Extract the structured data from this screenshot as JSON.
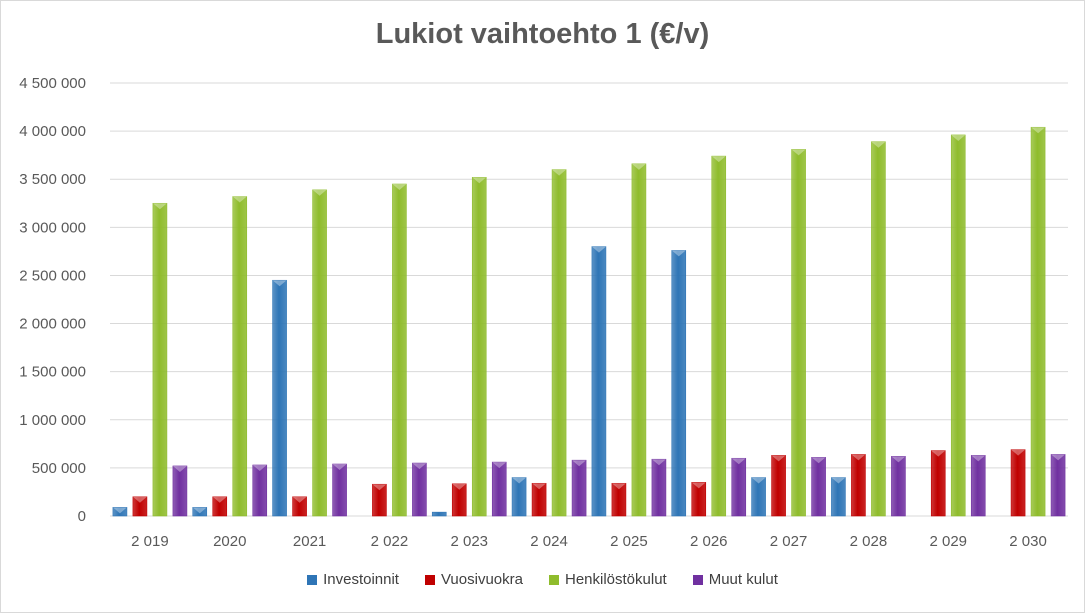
{
  "chart_data": {
    "type": "bar",
    "title": "Lukiot vaihtoehto 1 (€/v)",
    "categories": [
      "2 019",
      "2020",
      "2021",
      "2 022",
      "2 023",
      "2 024",
      "2 025",
      "2 026",
      "2 027",
      "2 028",
      "2 029",
      "2 030"
    ],
    "series": [
      {
        "name": "Investoinnit",
        "color": "#2e75b6",
        "values": [
          90000,
          90000,
          2450000,
          0,
          40000,
          400000,
          2800000,
          2760000,
          400000,
          400000,
          0,
          0
        ]
      },
      {
        "name": "Vuosivuokra",
        "color": "#c00000",
        "values": [
          200000,
          200000,
          200000,
          330000,
          335000,
          340000,
          340000,
          350000,
          630000,
          640000,
          680000,
          690000
        ]
      },
      {
        "name": "Henkilöstökulut",
        "color": "#8fbc2c",
        "values": [
          3250000,
          3320000,
          3390000,
          3450000,
          3520000,
          3600000,
          3660000,
          3740000,
          3810000,
          3890000,
          3960000,
          4040000
        ]
      },
      {
        "name": "Muut kulut",
        "color": "#7030a0",
        "values": [
          520000,
          530000,
          540000,
          550000,
          560000,
          580000,
          590000,
          600000,
          610000,
          620000,
          630000,
          640000
        ]
      }
    ],
    "ylim": [
      0,
      4500000
    ],
    "y_ticks": [
      0,
      500000,
      1000000,
      1500000,
      2000000,
      2500000,
      3000000,
      3500000,
      4000000,
      4500000
    ],
    "y_tick_labels": [
      "0",
      "500 000",
      "1 000 000",
      "1 500 000",
      "2 000 000",
      "2 500 000",
      "3 000 000",
      "3 500 000",
      "4 000 000",
      "4 500 000"
    ],
    "grid": true,
    "legend_position": "bottom"
  }
}
